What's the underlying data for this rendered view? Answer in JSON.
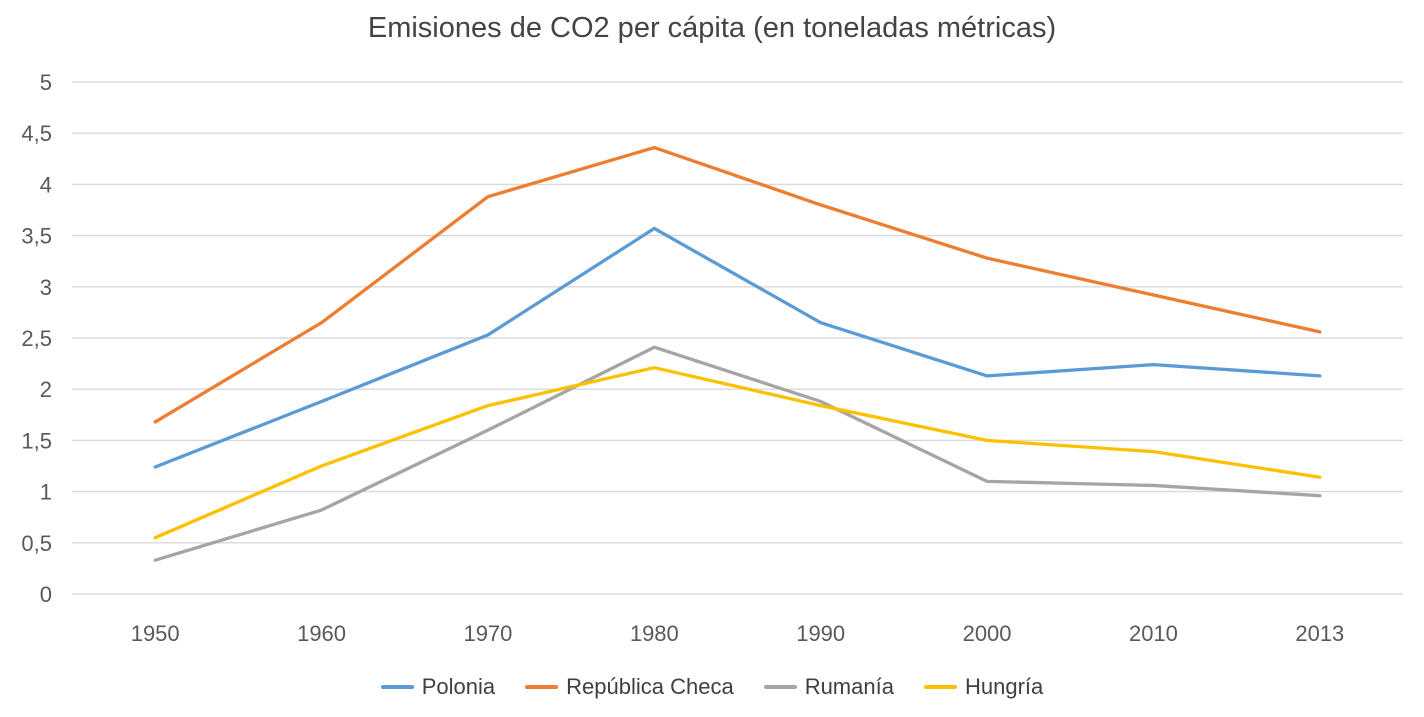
{
  "chart_data": {
    "type": "line",
    "title": "Emisiones de CO2 per cápita (en toneladas métricas)",
    "xlabel": "",
    "ylabel": "",
    "categories": [
      "1950",
      "1960",
      "1970",
      "1980",
      "1990",
      "2000",
      "2010",
      "2013"
    ],
    "series": [
      {
        "name": "Polonia",
        "color": "#5B9BD5",
        "values": [
          1.24,
          1.88,
          2.53,
          3.57,
          2.65,
          2.13,
          2.24,
          2.13
        ]
      },
      {
        "name": "República Checa",
        "color": "#ED7D31",
        "values": [
          1.68,
          2.65,
          3.88,
          4.36,
          3.8,
          3.28,
          2.92,
          2.56
        ]
      },
      {
        "name": "Rumanía",
        "color": "#A5A5A5",
        "values": [
          0.33,
          0.82,
          1.6,
          2.41,
          1.88,
          1.1,
          1.06,
          0.96
        ]
      },
      {
        "name": "Hungría",
        "color": "#FFC000",
        "values": [
          0.55,
          1.25,
          1.84,
          2.21,
          1.84,
          1.5,
          1.39,
          1.14
        ]
      }
    ],
    "ylim": [
      0,
      5
    ],
    "ytick_step": 0.5,
    "ytick_labels": [
      "0",
      "0,5",
      "1",
      "1,5",
      "2",
      "2,5",
      "3",
      "3,5",
      "4",
      "4,5",
      "5"
    ],
    "decimal_separator": ",",
    "grid": true,
    "legend_position": "bottom",
    "colors": {
      "gridline": "#D9D9D9",
      "axis_text": "#595959",
      "title_text": "#444444",
      "legend_text": "#404040",
      "background": "#FFFFFF"
    }
  }
}
